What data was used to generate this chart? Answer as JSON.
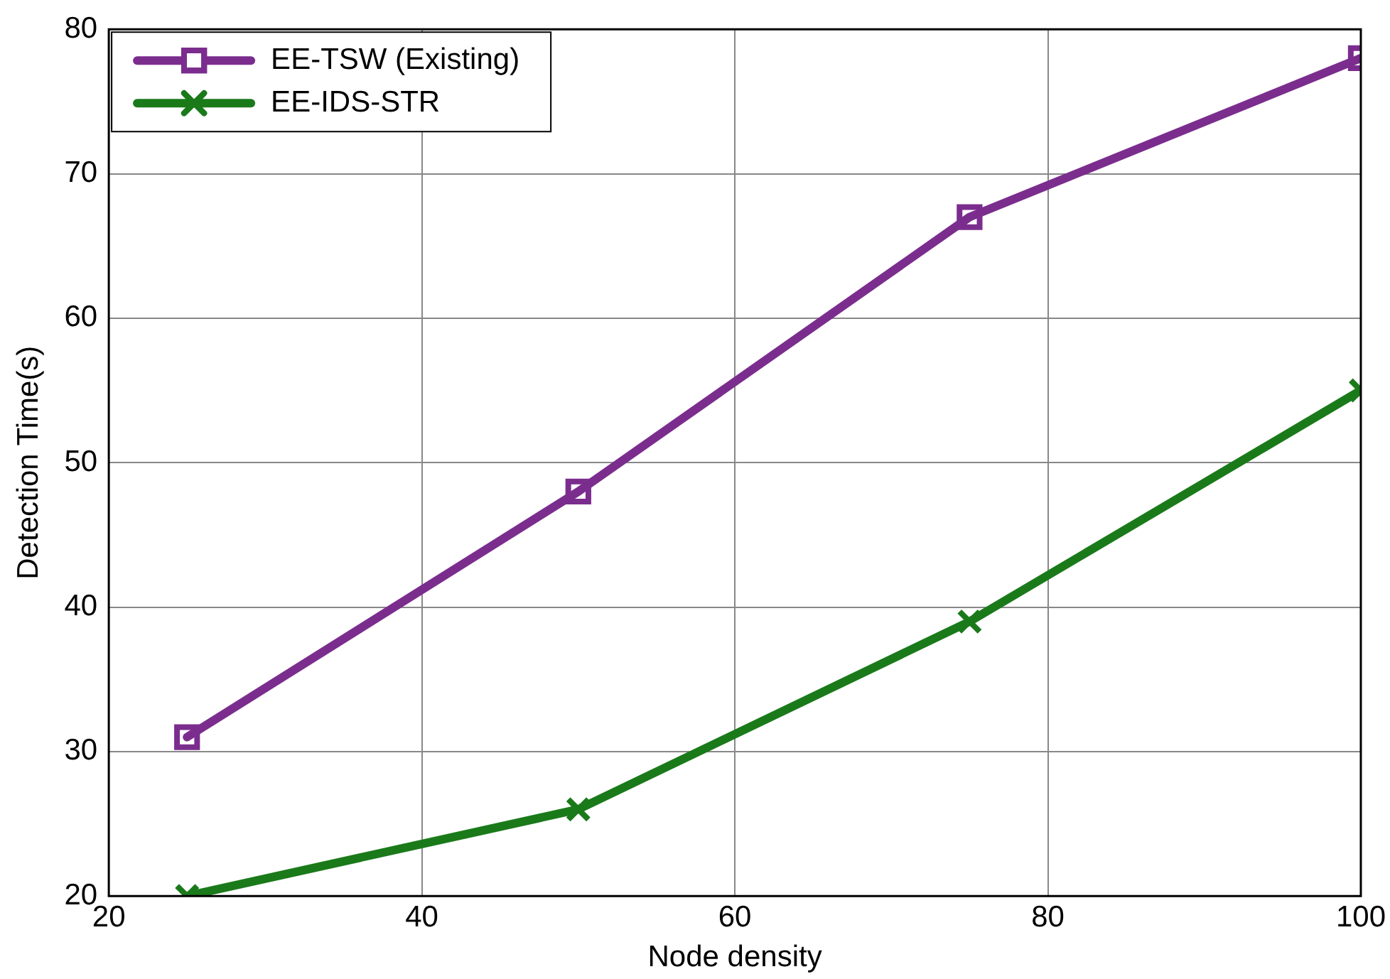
{
  "chart_data": {
    "type": "line",
    "xlabel": "Node density",
    "ylabel": "Detection Time(s)",
    "x": [
      25,
      50,
      75,
      100
    ],
    "series": [
      {
        "name": "EE-TSW (Existing)",
        "color": "#7b2d8e",
        "values": [
          31,
          48,
          67,
          78
        ],
        "marker": "square"
      },
      {
        "name": "EE-IDS-STR",
        "color": "#1a7a1a",
        "values": [
          20,
          26,
          39,
          55
        ],
        "marker": "cross"
      }
    ],
    "xlim": [
      20,
      100
    ],
    "xticks": [
      20,
      40,
      60,
      80,
      100
    ],
    "ylim": [
      20,
      80
    ],
    "yticks": [
      20,
      30,
      40,
      50,
      60,
      70,
      80
    ],
    "grid": true,
    "legend": "top left",
    "line_style": "solid"
  }
}
